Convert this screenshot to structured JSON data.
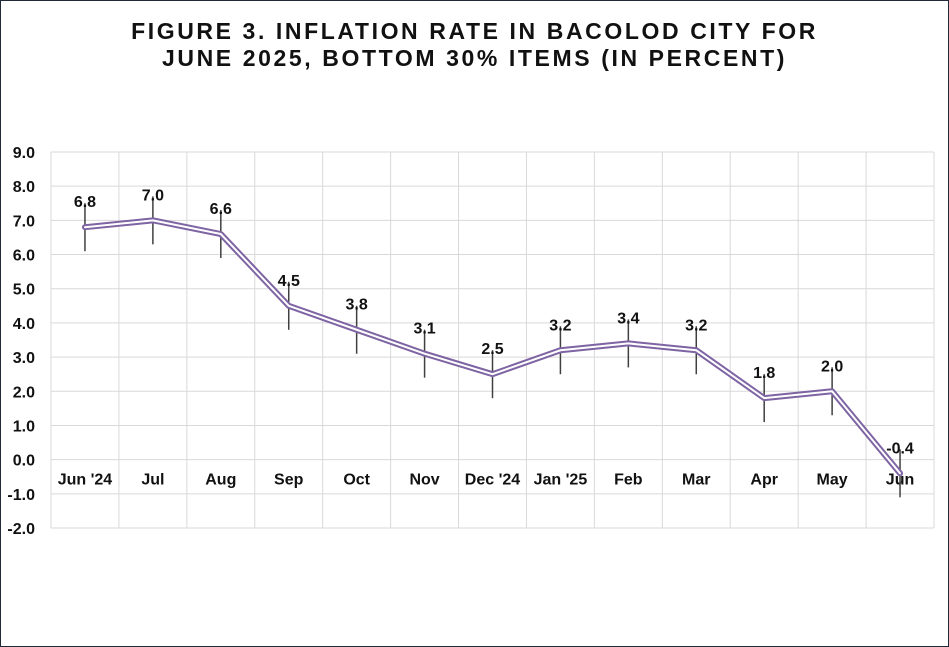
{
  "chart_data": {
    "type": "line",
    "title_lines": [
      "FIGURE 3. INFLATION RATE IN BACOLOD CITY FOR",
      "JUNE 2025, BOTTOM 30% ITEMS (IN PERCENT)"
    ],
    "categories": [
      "Jun '24",
      "Jul",
      "Aug",
      "Sep",
      "Oct",
      "Nov",
      "Dec '24",
      "Jan '25",
      "Feb",
      "Mar",
      "Apr",
      "May",
      "Jun"
    ],
    "values": [
      6.8,
      7.0,
      6.6,
      4.5,
      3.8,
      3.1,
      2.5,
      3.2,
      3.4,
      3.2,
      1.8,
      2.0,
      -0.4
    ],
    "data_labels": [
      "6.8",
      "7.0",
      "6.6",
      "4.5",
      "3.8",
      "3.1",
      "2.5",
      "3.2",
      "3.4",
      "3.2",
      "1.8",
      "2.0",
      "-0.4"
    ],
    "ylim": [
      -2.0,
      9.0
    ],
    "yticks": [
      "9.0",
      "8.0",
      "7.0",
      "6.0",
      "5.0",
      "4.0",
      "3.0",
      "2.0",
      "1.0",
      "0.0",
      "-1.0",
      "-2.0"
    ],
    "grid": true,
    "error_bars": true,
    "line_color": "#7e64a3",
    "xlabel": "",
    "ylabel": ""
  }
}
